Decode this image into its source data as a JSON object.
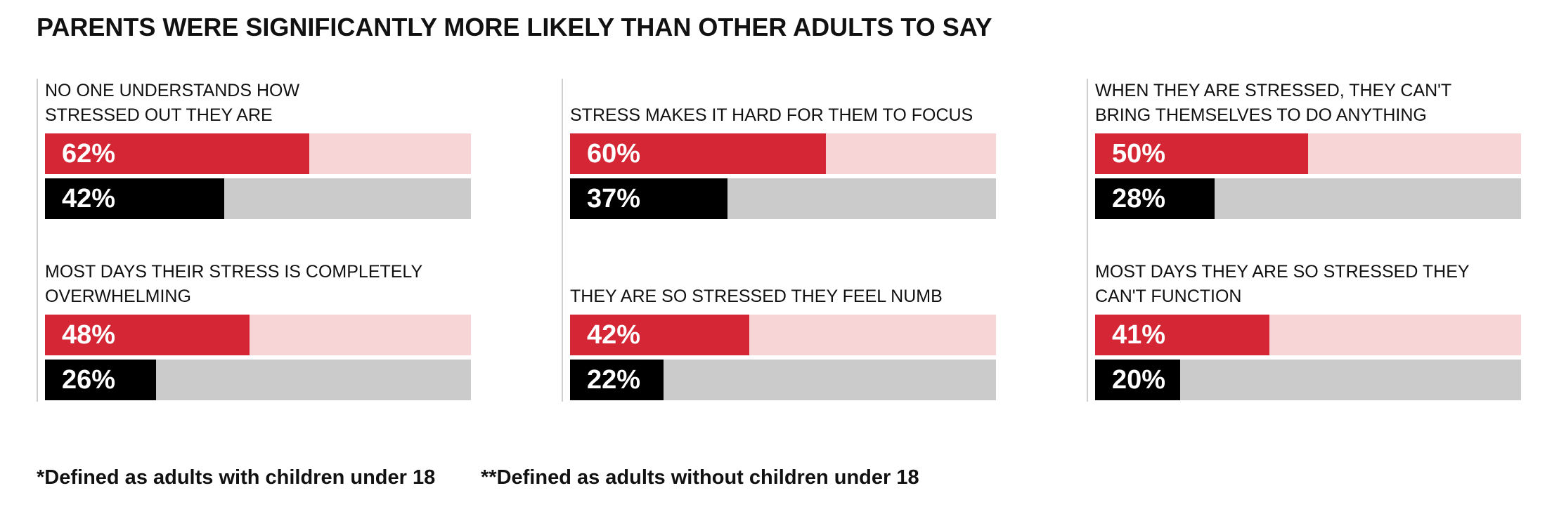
{
  "title": "PARENTS WERE SIGNIFICANTLY MORE LIKELY THAN OTHER ADULTS TO SAY",
  "colors": {
    "parents_fill": "#d42634",
    "parents_track": "#f7d4d6",
    "others_fill": "#000000",
    "others_track": "#cbcbcb"
  },
  "chart_data": {
    "type": "bar",
    "title": "PARENTS WERE SIGNIFICANTLY MORE LIKELY THAN OTHER ADULTS TO SAY",
    "value_unit": "%",
    "xlim": [
      0,
      100
    ],
    "legend": "",
    "categories": [
      "NO ONE UNDERSTANDS HOW STRESSED OUT THEY ARE",
      "STRESS MAKES IT HARD FOR THEM TO FOCUS",
      "WHEN THEY ARE STRESSED, THEY CAN'T BRING THEMSELVES TO DO ANYTHING",
      "MOST DAYS THEIR STRESS IS COMPLETELY OVERWHELMING",
      "THEY ARE SO STRESSED THEY FEEL NUMB",
      "MOST DAYS THEY ARE SO STRESSED THEY CAN'T FUNCTION"
    ],
    "series": [
      {
        "values": [
          62,
          60,
          50,
          48,
          42,
          41
        ]
      },
      {
        "values": [
          42,
          37,
          28,
          26,
          22,
          20
        ]
      }
    ],
    "items": [
      {
        "label": "NO ONE UNDERSTANDS HOW\nSTRESSED OUT THEY ARE",
        "parents": 62,
        "parents_label": "62%",
        "others": 42,
        "others_label": "42%"
      },
      {
        "label": "STRESS MAKES IT HARD FOR THEM TO FOCUS",
        "parents": 60,
        "parents_label": "60%",
        "others": 37,
        "others_label": "37%"
      },
      {
        "label": "WHEN THEY ARE STRESSED, THEY CAN'T\nBRING THEMSELVES TO DO ANYTHING",
        "parents": 50,
        "parents_label": "50%",
        "others": 28,
        "others_label": "28%"
      },
      {
        "label": "MOST DAYS THEIR STRESS IS COMPLETELY\nOVERWHELMING",
        "parents": 48,
        "parents_label": "48%",
        "others": 26,
        "others_label": "26%"
      },
      {
        "label": "THEY ARE SO STRESSED THEY FEEL NUMB",
        "parents": 42,
        "parents_label": "42%",
        "others": 22,
        "others_label": "22%"
      },
      {
        "label": "MOST DAYS THEY ARE SO STRESSED THEY\nCAN'T FUNCTION",
        "parents": 41,
        "parents_label": "41%",
        "others": 20,
        "others_label": "20%"
      }
    ]
  },
  "footnotes": {
    "parents": "*Defined as adults with children under 18",
    "others": "**Defined as adults without children under 18"
  }
}
